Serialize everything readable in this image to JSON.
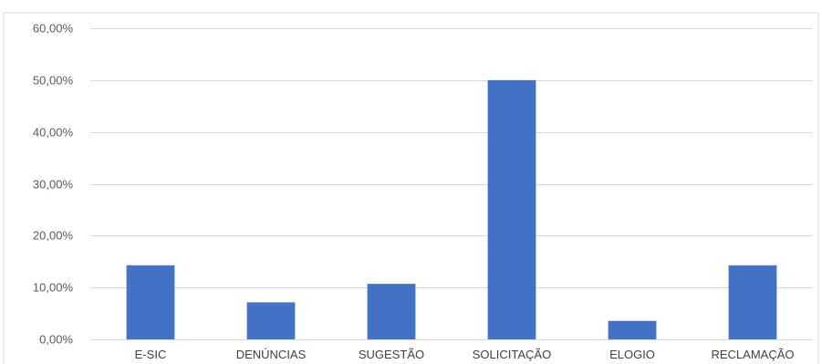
{
  "chart_data": {
    "type": "bar",
    "title": "",
    "xlabel": "",
    "ylabel": "",
    "categories": [
      "E-SIC",
      "DENÚNCIAS",
      "SUGESTÃO",
      "SOLICITAÇÃO",
      "ELOGIO",
      "RECLAMAÇÃO"
    ],
    "values": [
      14.29,
      7.14,
      10.71,
      50.0,
      3.57,
      14.29
    ],
    "ylim": [
      0,
      60
    ],
    "yticks": [
      0,
      10,
      20,
      30,
      40,
      50,
      60
    ],
    "ytick_labels": [
      "0,00%",
      "10,00%",
      "20,00%",
      "30,00%",
      "40,00%",
      "50,00%",
      "60,00%"
    ],
    "grid": true,
    "legend": "none",
    "colors": {
      "bar": "#4472C4",
      "grid": "#D9D9D9",
      "frame": "#D9D9D9",
      "text": "#595959"
    }
  }
}
